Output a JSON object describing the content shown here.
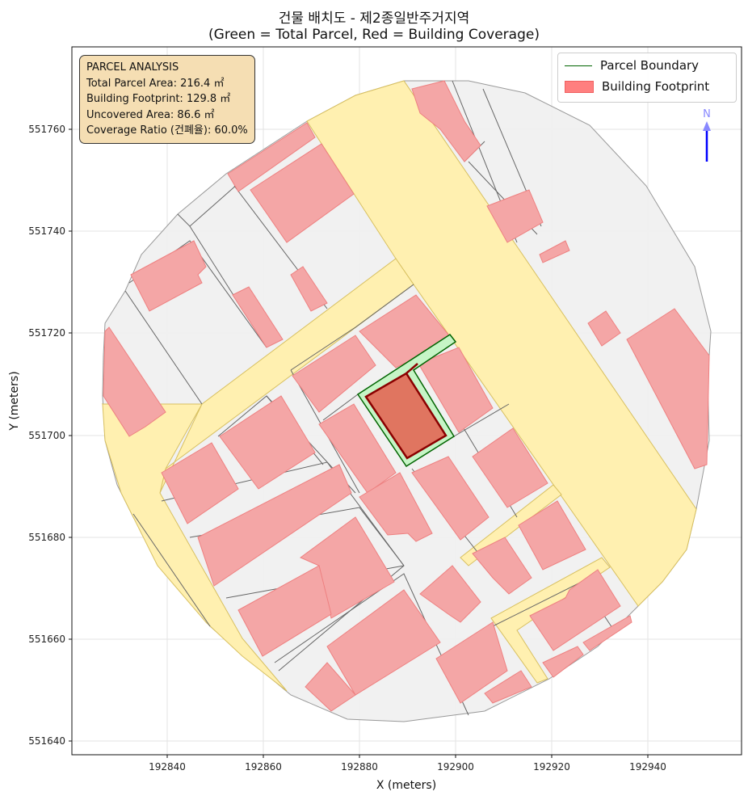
{
  "title": {
    "line1": "건물 배치도 - 제2종일반주거지역",
    "line2": "(Green = Total Parcel, Red = Building Coverage)"
  },
  "axes": {
    "xlabel": "X (meters)",
    "ylabel": "Y (meters)",
    "xticks": [
      "192840",
      "192860",
      "192880",
      "192900",
      "192920",
      "192940"
    ],
    "yticks": [
      "551640",
      "551660",
      "551680",
      "551700",
      "551720",
      "551740",
      "551760"
    ]
  },
  "info": {
    "heading": "PARCEL ANALYSIS",
    "total": "Total Parcel Area: 216.4 ㎡",
    "footprint": "Building Footprint: 129.8 ㎡",
    "uncovered": "Uncovered Area: 86.6 ㎡",
    "ratio": "Coverage Ratio (건폐율): 60.0%"
  },
  "legend": {
    "boundary": "Parcel Boundary",
    "footprint": "Building Footprint"
  },
  "north": {
    "label": "N"
  },
  "colors": {
    "parcel": "#006400",
    "parcel_fill": "#c6f5c6",
    "building": "#8b0000",
    "road": "#fff0b0",
    "footprint": "#f4a6a6"
  }
}
